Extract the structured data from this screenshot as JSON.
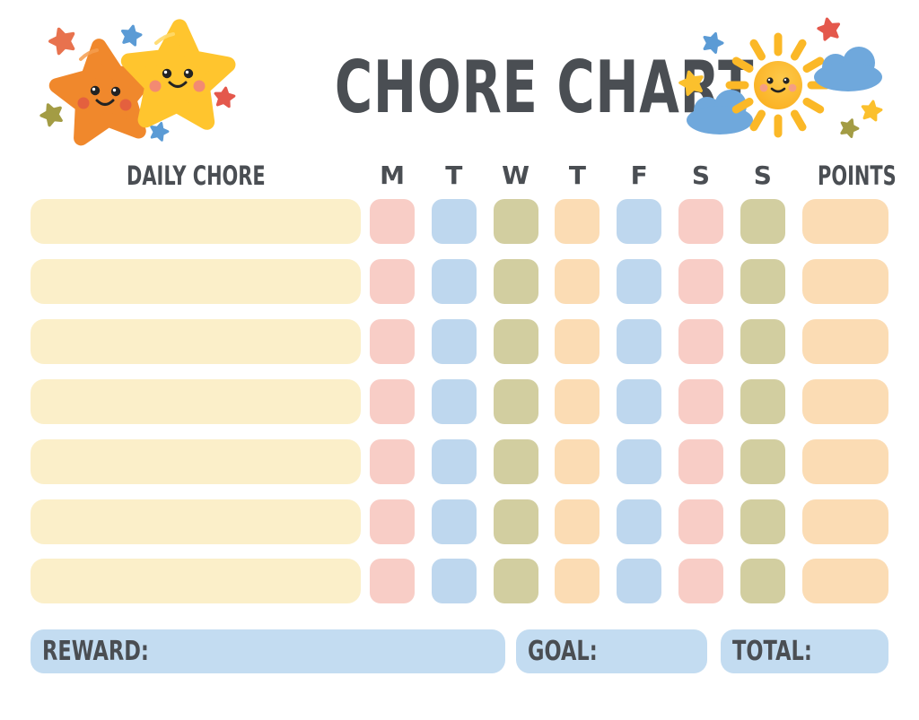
{
  "title": "CHORE CHART",
  "header": {
    "daily_chore": "DAILY CHORE",
    "days": [
      "M",
      "T",
      "W",
      "T",
      "F",
      "S",
      "S"
    ],
    "points": "POINTS"
  },
  "grid": {
    "rows": 7,
    "day_colors": [
      "pink",
      "blue",
      "olive",
      "peach",
      "blue",
      "pink",
      "olive"
    ],
    "chore_box_color": "cream",
    "points_color": "peach"
  },
  "footer": {
    "reward_label": "REWARD:",
    "goal_label": "GOAL:",
    "total_label": "TOTAL:"
  },
  "icons": {
    "left_illustration": "two-smiling-stars-illustration",
    "right_illustration": "smiling-sun-with-clouds-illustration"
  },
  "colors": {
    "text": "#4A4E53",
    "cream": "#FBEFC9",
    "pink": "#F8CDC6",
    "blue": "#BED7EE",
    "olive": "#D2CEA0",
    "peach": "#FBDCB4",
    "footer_blue": "#C3DCF1",
    "star_orange": "#F0882C",
    "star_yellow": "#FFC52E",
    "mini_blue": "#5B9BD5",
    "mini_red": "#E4584C",
    "mini_orange": "#E8724E",
    "mini_olive": "#A39C44",
    "mini_yellow": "#FBC02D",
    "sun": "#FBB827",
    "sun_light": "#FDC94A",
    "cloud": "#6FA8DC",
    "blush_orange": "#E25C40",
    "blush_pink": "#F2837A",
    "eye": "#232323"
  }
}
